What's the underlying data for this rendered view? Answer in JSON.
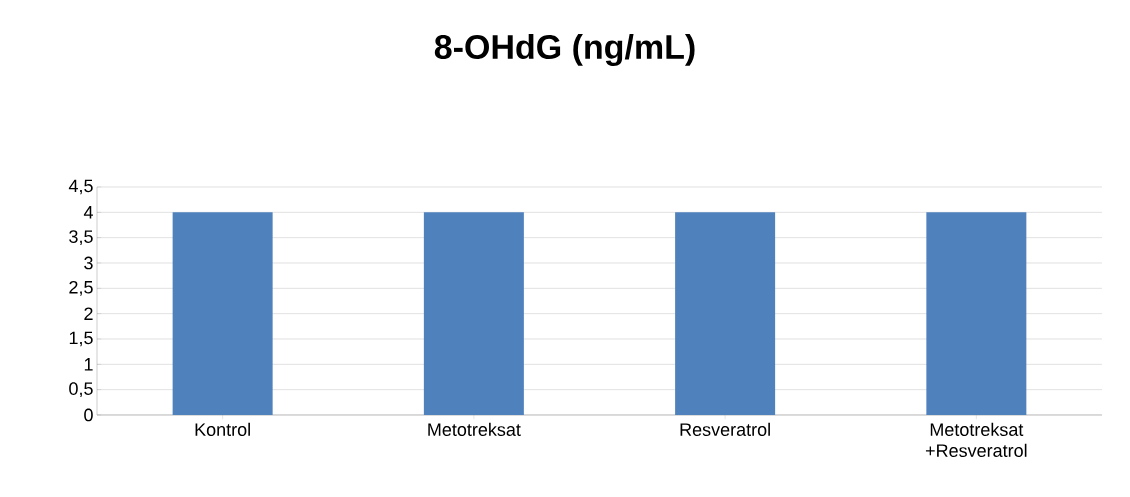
{
  "chart_data": {
    "type": "bar",
    "title": "8-OHdG (ng/mL)",
    "categories": [
      "Kontrol",
      "Metotreksat",
      "Resveratrol",
      "Metotreksat +Resveratrol"
    ],
    "values": [
      4,
      4,
      4,
      4
    ],
    "color": "#4f81bd",
    "ylim": [
      0,
      4.5
    ],
    "yticks": [
      0,
      {
        "value": 0.5,
        "label": "0,5"
      },
      1,
      {
        "value": 1.5,
        "label": "1,5"
      },
      2,
      {
        "value": 2.5,
        "label": "2,5"
      },
      3,
      {
        "value": 3.5,
        "label": "3,5"
      },
      4,
      {
        "value": 4.5,
        "label": "4,5"
      }
    ],
    "grid": "y"
  }
}
